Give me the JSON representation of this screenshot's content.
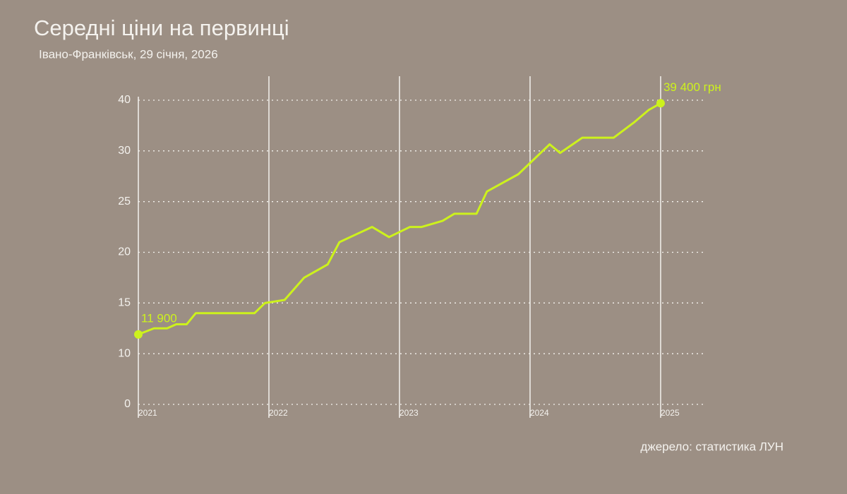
{
  "chart_data": {
    "type": "line",
    "title": "Середні ціни на первинці",
    "subtitle": "Івано-Франківськ, 29 січня, 2026",
    "source": "джерело: статистика ЛУН",
    "x": [
      2021.0,
      2021.12,
      2021.22,
      2021.29,
      2021.37,
      2021.44,
      2021.89,
      2021.97,
      2022.12,
      2022.27,
      2022.45,
      2022.54,
      2022.79,
      2022.92,
      2023.08,
      2023.17,
      2023.33,
      2023.42,
      2023.59,
      2023.67,
      2023.91,
      2024.15,
      2024.23,
      2024.4,
      2024.64,
      2024.8,
      2024.91,
      2025.0
    ],
    "series": [
      {
        "color": "#cdf21c",
        "values": [
          11.9,
          12.5,
          12.5,
          12.9,
          12.9,
          14.0,
          14.0,
          15.0,
          15.3,
          17.5,
          18.8,
          21.0,
          22.5,
          21.5,
          22.5,
          22.5,
          23.1,
          23.8,
          23.8,
          26.0,
          27.7,
          31.3,
          29.8,
          32.6,
          32.6,
          35.7,
          38.1,
          39.4
        ],
        "value_labels": [
          "11 900",
          null,
          null,
          null,
          null,
          null,
          null,
          null,
          null,
          null,
          null,
          null,
          null,
          null,
          null,
          null,
          null,
          null,
          null,
          null,
          null,
          null,
          null,
          null,
          null,
          null,
          null,
          "39 400 грн"
        ]
      }
    ],
    "xlim": [
      2021,
      2025.33
    ],
    "xticks": [
      2021,
      2022,
      2023,
      2024,
      2025
    ],
    "ylim": [
      0,
      40
    ],
    "yticks": [
      0,
      10,
      15,
      20,
      25,
      30,
      40
    ],
    "grid": true
  }
}
